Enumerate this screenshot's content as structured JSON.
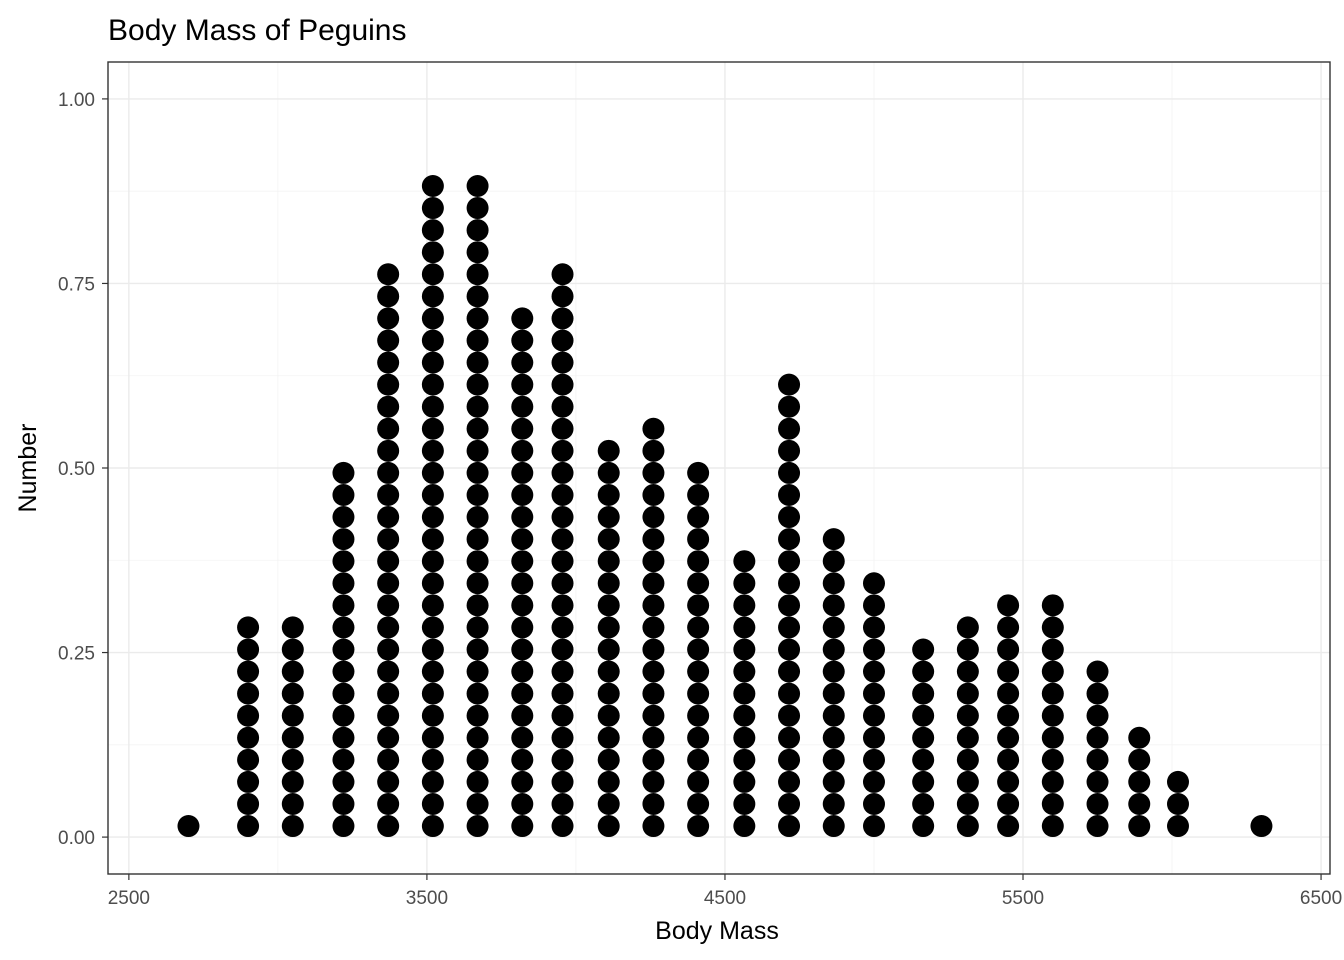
{
  "chart_data": {
    "type": "dotplot",
    "title": "Body Mass of Peguins",
    "xlabel": "Body Mass",
    "ylabel": "Number",
    "xlim": [
      2430,
      6530
    ],
    "ylim": [
      -0.05,
      1.05
    ],
    "x_ticks": [
      2500,
      3500,
      4500,
      5500,
      6500
    ],
    "x_tick_labels": [
      "2500",
      "3500",
      "4500",
      "5500",
      "6500"
    ],
    "y_ticks": [
      0,
      0.25,
      0.5,
      0.75,
      1
    ],
    "y_tick_labels": [
      "0.00",
      "0.25",
      "0.50",
      "0.75",
      "1.00"
    ],
    "grid": true,
    "dot_step": 0.0299,
    "dot_color": "#000000",
    "bins": [
      {
        "x": 2700,
        "count": 1
      },
      {
        "x": 2900,
        "count": 10
      },
      {
        "x": 3050,
        "count": 10
      },
      {
        "x": 3220,
        "count": 17
      },
      {
        "x": 3370,
        "count": 26
      },
      {
        "x": 3520,
        "count": 30
      },
      {
        "x": 3670,
        "count": 30
      },
      {
        "x": 3820,
        "count": 24
      },
      {
        "x": 3955,
        "count": 26
      },
      {
        "x": 4110,
        "count": 18
      },
      {
        "x": 4260,
        "count": 19
      },
      {
        "x": 4410,
        "count": 17
      },
      {
        "x": 4565,
        "count": 13
      },
      {
        "x": 4715,
        "count": 21
      },
      {
        "x": 4865,
        "count": 14
      },
      {
        "x": 5000,
        "count": 12
      },
      {
        "x": 5165,
        "count": 9
      },
      {
        "x": 5315,
        "count": 10
      },
      {
        "x": 5450,
        "count": 11
      },
      {
        "x": 5600,
        "count": 11
      },
      {
        "x": 5750,
        "count": 8
      },
      {
        "x": 5890,
        "count": 5
      },
      {
        "x": 6020,
        "count": 3
      },
      {
        "x": 6300,
        "count": 1
      }
    ]
  }
}
